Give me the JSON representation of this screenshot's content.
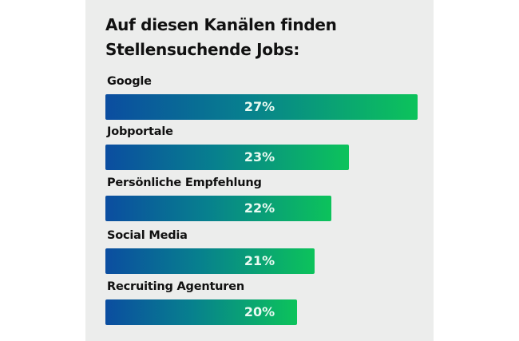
{
  "chart_data": {
    "type": "bar",
    "orientation": "horizontal",
    "title": "Auf diesen Kanälen finden Stellensuchende Jobs:",
    "title_lines": [
      "Auf diesen Kanälen finden",
      "Stellensuchende Jobs:"
    ],
    "categories": [
      "Google",
      "Jobportale",
      "Persönliche Empfehlung",
      "Social Media",
      "Recruiting Agenturen"
    ],
    "values": [
      27,
      23,
      22,
      21,
      20
    ],
    "value_labels": [
      "27%",
      "23%",
      "22%",
      "21%",
      "20%"
    ],
    "unit": "%",
    "grid": false,
    "legend": "none",
    "colors": {
      "gradient_start": "#0b4da0",
      "gradient_end": "#0cc35b",
      "background": "#ecedec"
    }
  }
}
